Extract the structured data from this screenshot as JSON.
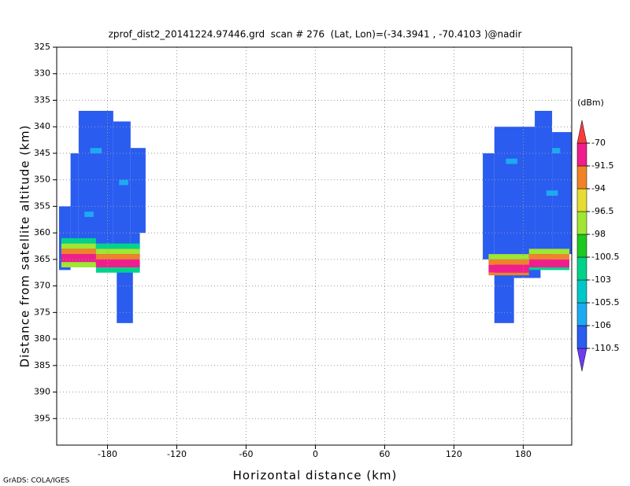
{
  "chart_data": {
    "type": "heatmap",
    "title": "zprof_dist2_20141224.97446.grd  scan # 276  (Lat, Lon)=(-34.3941 , -70.4103 )@nadir",
    "x_label": "Horizontal distance (km)",
    "y_label": "Distance from satellite altitude (km)",
    "footer": "GrADS: COLA/IGES",
    "colorbar_label": "(dBm)",
    "xlim": [
      -224,
      222
    ],
    "ylim": [
      400,
      325
    ],
    "xticks": [
      -180,
      -120,
      -60,
      0,
      60,
      120,
      180
    ],
    "yticks": [
      325,
      330,
      335,
      340,
      345,
      350,
      355,
      360,
      365,
      370,
      375,
      380,
      385,
      390,
      395
    ],
    "grid": true,
    "levels": [
      -110.5,
      -106,
      -105.5,
      -103,
      -100.5,
      -98,
      -96.5,
      -94,
      -91.5,
      -70
    ],
    "colors": [
      "#6e3cf0",
      "#2a5cf0",
      "#1eaaf0",
      "#00c8c8",
      "#00d28c",
      "#1ec81e",
      "#a0e632",
      "#e6dc32",
      "#f08228",
      "#f01e8c",
      "#fa3c3c"
    ],
    "cells": [
      {
        "x": [
          -205,
          -175
        ],
        "y": [
          337,
          366
        ],
        "value": -108
      },
      {
        "x": [
          -175,
          -160
        ],
        "y": [
          339,
          366
        ],
        "value": -108
      },
      {
        "x": [
          -160,
          -147
        ],
        "y": [
          344,
          360
        ],
        "value": -108
      },
      {
        "x": [
          -160,
          -152
        ],
        "y": [
          360,
          367
        ],
        "value": -108
      },
      {
        "x": [
          -212,
          -205
        ],
        "y": [
          345,
          366
        ],
        "value": -108
      },
      {
        "x": [
          -222,
          -212
        ],
        "y": [
          355,
          367
        ],
        "value": -108
      },
      {
        "x": [
          -172,
          -158
        ],
        "y": [
          366,
          377
        ],
        "value": -108
      },
      {
        "x": [
          -195,
          -185
        ],
        "y": [
          344,
          345
        ],
        "value": -105.8
      },
      {
        "x": [
          -170,
          -162
        ],
        "y": [
          350,
          351
        ],
        "value": -105.8
      },
      {
        "x": [
          -200,
          -192
        ],
        "y": [
          356,
          357
        ],
        "value": -105.8
      },
      {
        "x": [
          -220,
          -190
        ],
        "y": [
          361,
          362
        ],
        "value": -101
      },
      {
        "x": [
          -220,
          -190
        ],
        "y": [
          362,
          363
        ],
        "value": -97
      },
      {
        "x": [
          -220,
          -190
        ],
        "y": [
          363,
          364
        ],
        "value": -93
      },
      {
        "x": [
          -220,
          -190
        ],
        "y": [
          364,
          365.5
        ],
        "value": -85
      },
      {
        "x": [
          -220,
          -190
        ],
        "y": [
          365.5,
          366.5
        ],
        "value": -97
      },
      {
        "x": [
          -190,
          -152
        ],
        "y": [
          362,
          363
        ],
        "value": -101
      },
      {
        "x": [
          -190,
          -152
        ],
        "y": [
          363,
          364
        ],
        "value": -97
      },
      {
        "x": [
          -190,
          -152
        ],
        "y": [
          364,
          365
        ],
        "value": -93
      },
      {
        "x": [
          -190,
          -152
        ],
        "y": [
          365,
          366.5
        ],
        "value": -85
      },
      {
        "x": [
          -190,
          -152
        ],
        "y": [
          366.5,
          367.5
        ],
        "value": -101
      },
      {
        "x": [
          155,
          190
        ],
        "y": [
          340,
          365
        ],
        "value": -108
      },
      {
        "x": [
          190,
          205
        ],
        "y": [
          337,
          365
        ],
        "value": -108
      },
      {
        "x": [
          205,
          222
        ],
        "y": [
          341,
          364
        ],
        "value": -108
      },
      {
        "x": [
          145,
          155
        ],
        "y": [
          345,
          365
        ],
        "value": -108
      },
      {
        "x": [
          155,
          172
        ],
        "y": [
          365,
          377
        ],
        "value": -108
      },
      {
        "x": [
          172,
          195
        ],
        "y": [
          366,
          368.5
        ],
        "value": -108
      },
      {
        "x": [
          165,
          175
        ],
        "y": [
          346,
          347
        ],
        "value": -105.8
      },
      {
        "x": [
          200,
          210
        ],
        "y": [
          352,
          353
        ],
        "value": -105.8
      },
      {
        "x": [
          205,
          212
        ],
        "y": [
          344,
          345
        ],
        "value": -105.8
      },
      {
        "x": [
          150,
          185
        ],
        "y": [
          364,
          365
        ],
        "value": -97
      },
      {
        "x": [
          150,
          185
        ],
        "y": [
          365,
          366
        ],
        "value": -93
      },
      {
        "x": [
          150,
          185
        ],
        "y": [
          366,
          367.5
        ],
        "value": -85
      },
      {
        "x": [
          150,
          185
        ],
        "y": [
          367.5,
          368
        ],
        "value": -93
      },
      {
        "x": [
          185,
          220
        ],
        "y": [
          363,
          364
        ],
        "value": -97
      },
      {
        "x": [
          185,
          220
        ],
        "y": [
          364,
          365
        ],
        "value": -93
      },
      {
        "x": [
          185,
          220
        ],
        "y": [
          365,
          366.5
        ],
        "value": -85
      },
      {
        "x": [
          185,
          220
        ],
        "y": [
          366.5,
          367
        ],
        "value": -101
      }
    ]
  }
}
